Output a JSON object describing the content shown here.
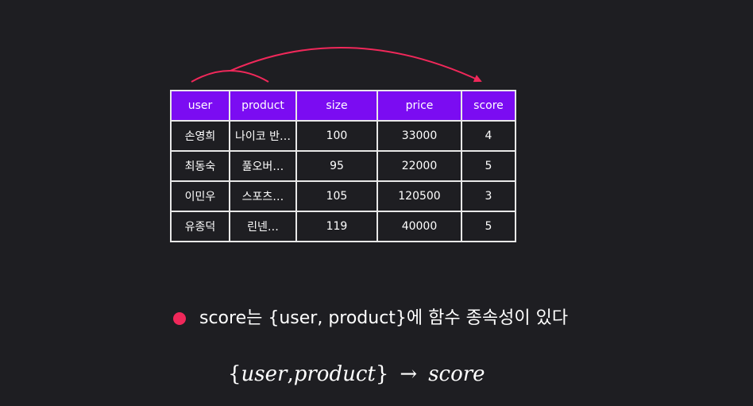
{
  "colors": {
    "background": "#1e1e22",
    "header_fill": "#7b0cf2",
    "arrow": "#f0285a",
    "bullet": "#f0285a",
    "border": "#e8e8e8"
  },
  "table": {
    "columns": [
      "user",
      "product",
      "size",
      "price",
      "score"
    ],
    "rows": [
      [
        "손영희",
        "나이코 반…",
        "100",
        "33000",
        "4"
      ],
      [
        "최동숙",
        "풀오버…",
        "95",
        "22000",
        "5"
      ],
      [
        "이민우",
        "스포츠…",
        "105",
        "120500",
        "3"
      ],
      [
        "유종덕",
        "린넨…",
        "119",
        "40000",
        "5"
      ]
    ]
  },
  "dependency_arrow": {
    "from": [
      "user",
      "product"
    ],
    "to": "score"
  },
  "statement": "score는 {user, product}에 함수 종속성이 있다",
  "formula": {
    "open_brace": "{",
    "lhs_first": "user",
    "comma": ",",
    "lhs_second": "product",
    "close_brace": "}",
    "arrow": "→",
    "rhs": "score"
  }
}
